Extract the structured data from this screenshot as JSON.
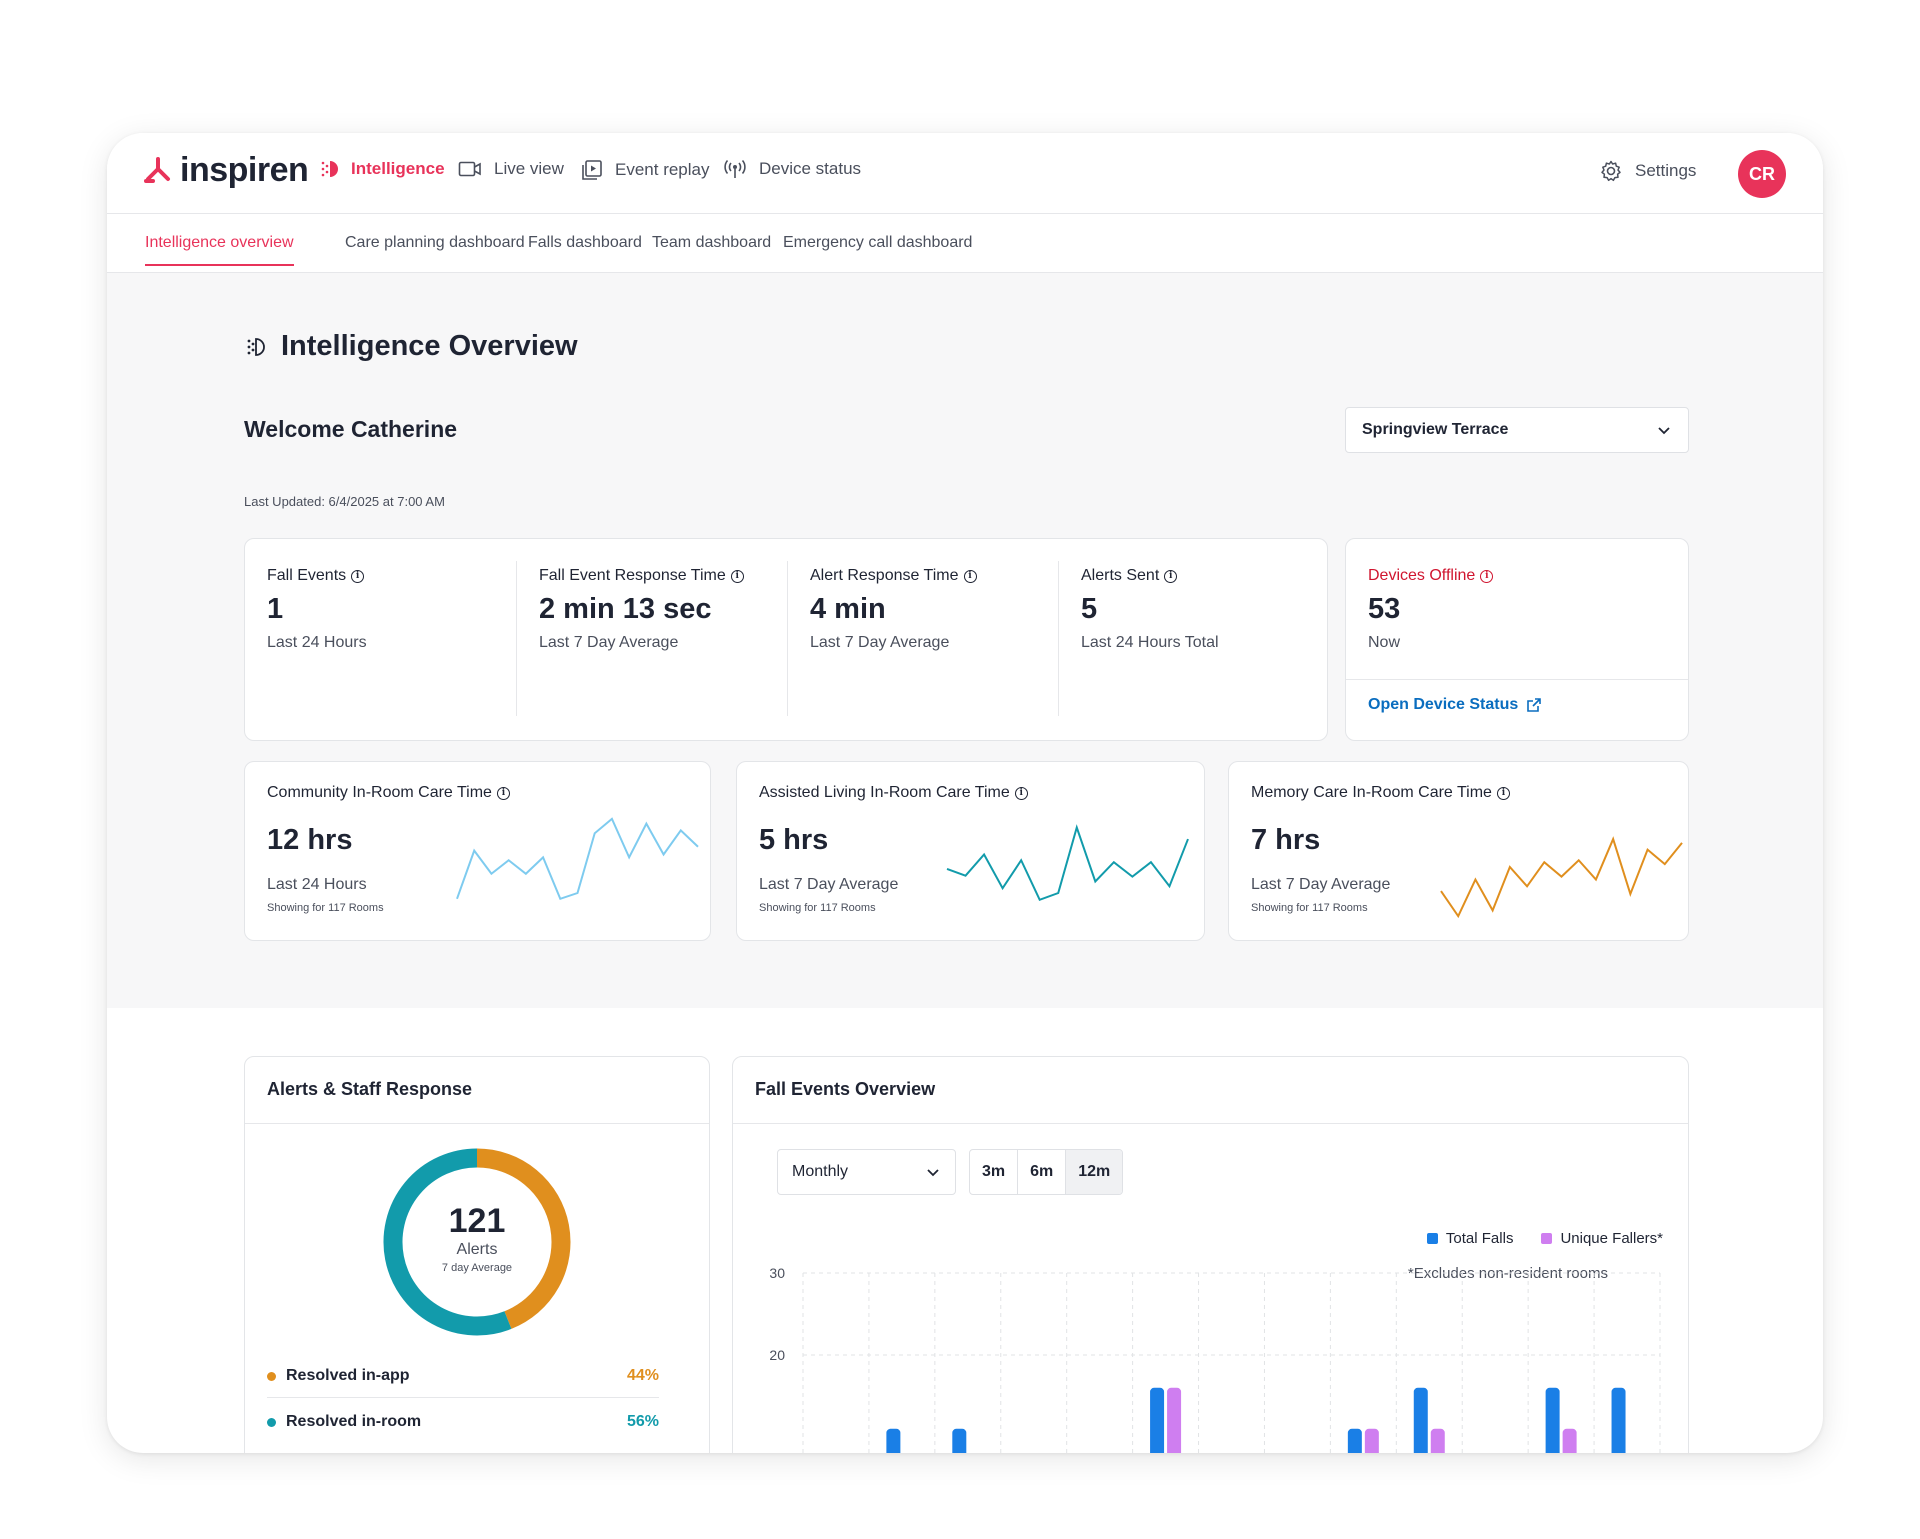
{
  "brand": {
    "name": "inspiren"
  },
  "nav": {
    "items": [
      {
        "label": "Intelligence",
        "icon": "intelligence-icon"
      },
      {
        "label": "Live view",
        "icon": "video-camera-icon"
      },
      {
        "label": "Event replay",
        "icon": "replay-icon"
      },
      {
        "label": "Device status",
        "icon": "broadcast-icon"
      }
    ],
    "settings": "Settings",
    "avatar": "CR"
  },
  "subnav": [
    "Intelligence overview",
    "Care planning dashboard",
    "Falls dashboard",
    "Team dashboard",
    "Emergency call dashboard"
  ],
  "page": {
    "title": "Intelligence Overview",
    "welcome": "Welcome Catherine",
    "facility": "Springview Terrace",
    "updated": "Last Updated: 6/4/2025 at 7:00 AM"
  },
  "stats": [
    {
      "label": "Fall Events",
      "value": "1",
      "sub": "Last 24 Hours"
    },
    {
      "label": "Fall Event Response Time",
      "value": "2 min 13 sec",
      "sub": "Last 7 Day Average"
    },
    {
      "label": "Alert Response Time",
      "value": "4 min",
      "sub": "Last 7 Day Average"
    },
    {
      "label": "Alerts Sent",
      "value": "5",
      "sub": "Last 24 Hours Total"
    }
  ],
  "devices": {
    "label": "Devices Offline",
    "value": "53",
    "sub": "Now",
    "link": "Open Device Status"
  },
  "care": [
    {
      "label": "Community In-Room Care Time",
      "value": "12 hrs",
      "sub": "Last 24 Hours",
      "note": "Showing for 117 Rooms",
      "color": "#7ecbef",
      "trend": [
        22,
        72,
        48,
        62,
        48,
        65,
        22,
        28,
        90,
        105,
        65,
        100,
        68,
        93,
        76
      ]
    },
    {
      "label": "Assisted Living In-Room Care Time",
      "value": "5 hrs",
      "sub": "Last 7 Day Average",
      "note": "Showing for 117 Rooms",
      "color": "#129bab",
      "trend": [
        53,
        46,
        68,
        33,
        62,
        21,
        28,
        96,
        40,
        60,
        45,
        60,
        35,
        84
      ]
    },
    {
      "label": "Memory Care In-Room Care Time",
      "value": "7 hrs",
      "sub": "Last 7 Day Average",
      "note": "Showing for 117 Rooms",
      "color": "#e08f1e",
      "trend": [
        30,
        4,
        42,
        10,
        55,
        35,
        60,
        45,
        62,
        42,
        84,
        27,
        73,
        58,
        80
      ]
    }
  ],
  "alerts": {
    "title": "Alerts & Staff Response",
    "total": "121",
    "unit": "Alerts",
    "caption": "7 day Average",
    "segments": [
      {
        "label": "Resolved in-app",
        "pct": "44%",
        "value": 44,
        "color": "#e08f1e"
      },
      {
        "label": "Resolved in-room",
        "pct": "56%",
        "value": 56,
        "color": "#129bab"
      }
    ]
  },
  "falls": {
    "title": "Fall Events Overview",
    "period": "Monthly",
    "ranges": [
      "3m",
      "6m",
      "12m"
    ],
    "selected_range": "12m",
    "legend": [
      {
        "name": "Total Falls",
        "color": "#1a7fe6"
      },
      {
        "name": "Unique Fallers*",
        "color": "#cf7ef0"
      }
    ],
    "note": "*Excludes non-resident rooms"
  },
  "chart_data": {
    "type": "bar",
    "title": "Fall Events Overview",
    "ylim": [
      10,
      30
    ],
    "yticks": [
      30,
      20
    ],
    "grid": true,
    "legend": "top-right",
    "series": [
      {
        "name": "Total Falls",
        "values": [
          null,
          11,
          11,
          null,
          null,
          16,
          null,
          null,
          11,
          16,
          null,
          16,
          16
        ]
      },
      {
        "name": "Unique Fallers*",
        "values": [
          null,
          null,
          null,
          null,
          null,
          16,
          null,
          null,
          11,
          11,
          null,
          11,
          null
        ]
      }
    ]
  }
}
